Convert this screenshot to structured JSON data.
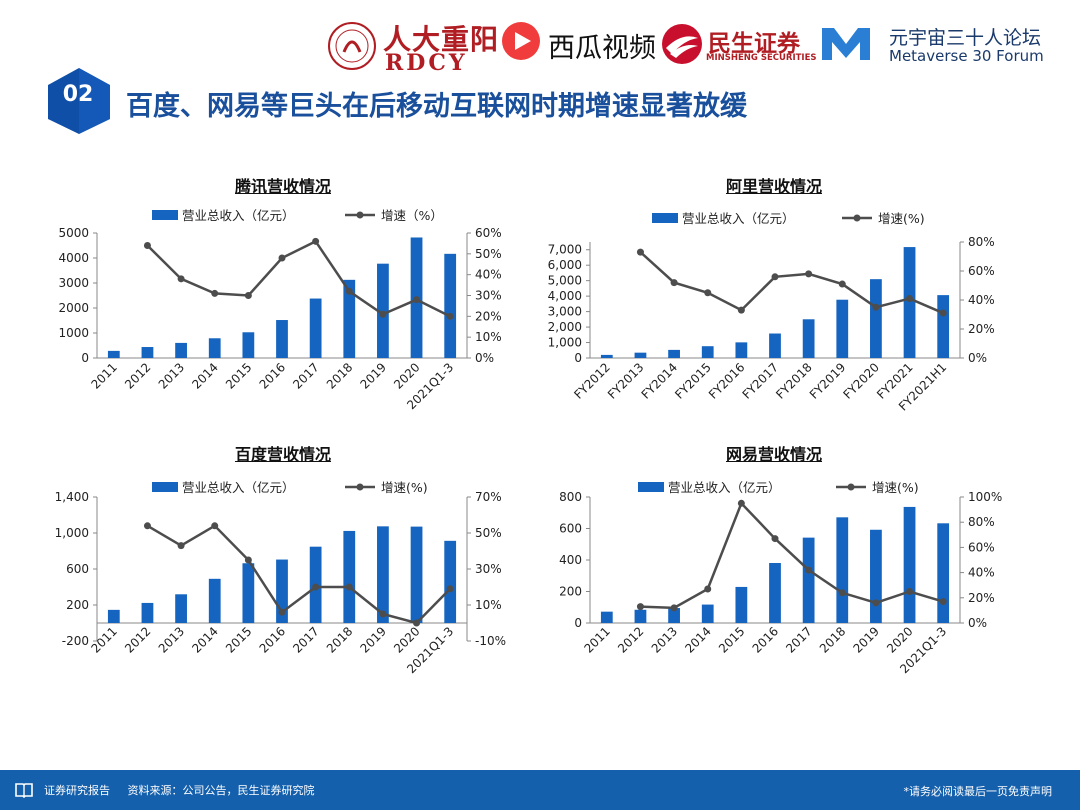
{
  "header": {
    "logos": {
      "rdcy_cn": "人大重阳",
      "rdcy_en": "RDCY",
      "xigua": "西瓜视频",
      "minsheng_cn": "民生证券",
      "minsheng_en": "MINSHENG SECURITIES",
      "metaverse_cn": "元宇宙三十人论坛",
      "metaverse_en": "Metaverse 30 Forum"
    },
    "section_number": "02",
    "title": "百度、网易等巨头在后移动互联网时期增速显著放缓"
  },
  "colors": {
    "bar": "#1565c0",
    "line": "#4d4d4d",
    "title_blue": "#1a4f9c",
    "footer": "#1560ad"
  },
  "chart_data": [
    {
      "type": "bar",
      "title": "腾讯营收情况",
      "categories": [
        "2011",
        "2012",
        "2013",
        "2014",
        "2015",
        "2016",
        "2017",
        "2018",
        "2019",
        "2020",
        "2021Q1-3"
      ],
      "series": [
        {
          "name": "营业总收入（亿元）",
          "type": "bar",
          "axis": "left",
          "values": [
            285,
            439,
            604,
            789,
            1029,
            1519,
            2378,
            3127,
            3773,
            4821,
            4167
          ]
        },
        {
          "name": "增速（%）",
          "type": "line",
          "axis": "right",
          "values": [
            null,
            54,
            38,
            31,
            30,
            48,
            56,
            32,
            21,
            28,
            20
          ]
        }
      ],
      "left_axis": {
        "min": 0,
        "max": 5000,
        "ticks": [
          "0",
          "1000",
          "2000",
          "3000",
          "4000",
          "5000"
        ]
      },
      "right_axis": {
        "min": 0,
        "max": 60,
        "ticks": [
          "0%",
          "10%",
          "20%",
          "30%",
          "40%",
          "50%",
          "60%"
        ]
      },
      "legend": "top"
    },
    {
      "type": "bar",
      "title": "阿里营收情况",
      "categories": [
        "FY2012",
        "FY2013",
        "FY2014",
        "FY2015",
        "FY2016",
        "FY2017",
        "FY2018",
        "FY2019",
        "FY2020",
        "FY2021",
        "FY2021H1"
      ],
      "series": [
        {
          "name": "营业总收入（亿元）",
          "type": "bar",
          "axis": "left",
          "values": [
            200,
            345,
            525,
            763,
            1011,
            1583,
            2503,
            3769,
            5097,
            7172,
            4065
          ]
        },
        {
          "name": "增速(%)",
          "type": "line",
          "axis": "right",
          "values": [
            null,
            73,
            52,
            45,
            33,
            56,
            58,
            51,
            35,
            41,
            31
          ]
        }
      ],
      "left_axis": {
        "min": 0,
        "max": 7500,
        "ticks": [
          "0",
          "1,000",
          "2,000",
          "3,000",
          "4,000",
          "5,000",
          "6,000",
          "7,000"
        ]
      },
      "right_axis": {
        "min": 0,
        "max": 80,
        "ticks": [
          "0%",
          "20%",
          "40%",
          "60%",
          "80%"
        ]
      },
      "legend": "top"
    },
    {
      "type": "bar",
      "title": "百度营收情况",
      "categories": [
        "2011",
        "2012",
        "2013",
        "2014",
        "2015",
        "2016",
        "2017",
        "2018",
        "2019",
        "2020",
        "2021Q1-3"
      ],
      "series": [
        {
          "name": "营业总收入（亿元）",
          "type": "bar",
          "axis": "left",
          "values": [
            146,
            223,
            319,
            491,
            664,
            705,
            848,
            1023,
            1074,
            1071,
            913
          ]
        },
        {
          "name": "增速(%)",
          "type": "line",
          "axis": "right",
          "values": [
            null,
            54,
            43,
            54,
            35,
            6,
            20,
            20,
            5,
            0,
            19
          ]
        }
      ],
      "left_axis": {
        "min": -200,
        "max": 1400,
        "ticks": [
          "-200",
          "200",
          "600",
          "1,000",
          "1,400"
        ]
      },
      "right_axis": {
        "min": -10,
        "max": 70,
        "ticks": [
          "-10%",
          "10%",
          "30%",
          "50%",
          "70%"
        ]
      },
      "legend": "top"
    },
    {
      "type": "bar",
      "title": "网易营收情况",
      "categories": [
        "2011",
        "2012",
        "2013",
        "2014",
        "2015",
        "2016",
        "2017",
        "2018",
        "2019",
        "2020",
        "2021Q1-3"
      ],
      "series": [
        {
          "name": "营业总收入（亿元）",
          "type": "bar",
          "axis": "left",
          "values": [
            72,
            84,
            95,
            117,
            229,
            381,
            542,
            671,
            592,
            737,
            633
          ]
        },
        {
          "name": "增速(%)",
          "type": "line",
          "axis": "right",
          "values": [
            null,
            13,
            12,
            27,
            95,
            67,
            42,
            24,
            16,
            25,
            17
          ]
        }
      ],
      "left_axis": {
        "min": 0,
        "max": 800,
        "ticks": [
          "0",
          "200",
          "400",
          "600",
          "800"
        ]
      },
      "right_axis": {
        "min": 0,
        "max": 100,
        "ticks": [
          "0%",
          "20%",
          "40%",
          "60%",
          "80%",
          "100%"
        ]
      },
      "legend": "top"
    }
  ],
  "footer": {
    "brand": "证券研究报告",
    "source": "资料来源：公司公告，民生证券研究院",
    "disclaimer": "*请务必阅读最后一页免责声明"
  }
}
